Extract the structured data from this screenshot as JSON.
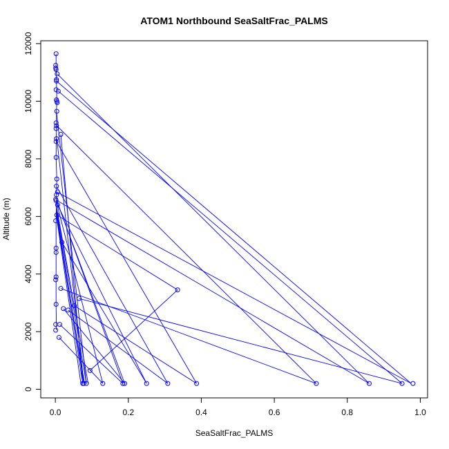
{
  "chart_data": {
    "type": "scatter",
    "title": "ATOM1 Northbound SeaSaltFrac_PALMS",
    "xlabel": "SeaSaltFrac_PALMS",
    "ylabel": "Altitude (m)",
    "xlim": [
      -0.04,
      1.02
    ],
    "ylim": [
      -300,
      12100
    ],
    "xticks": [
      0.0,
      0.2,
      0.4,
      0.6,
      0.8,
      1.0
    ],
    "xtick_labels": [
      "0.0",
      "0.2",
      "0.4",
      "0.6",
      "0.8",
      "1.0"
    ],
    "yticks": [
      0,
      2000,
      4000,
      6000,
      8000,
      10000,
      12000
    ],
    "ytick_labels": [
      "0",
      "2000",
      "4000",
      "6000",
      "8000",
      "10000",
      "12000"
    ],
    "grid": false,
    "series_color": "#0000ff",
    "series": [
      {
        "style": "points-and-lines",
        "points": [
          [
            0.002,
            11650
          ],
          [
            0.001,
            11250
          ],
          [
            0.001,
            11150
          ],
          [
            0.002,
            11100
          ],
          [
            0.003,
            10750
          ],
          [
            0.003,
            10700
          ],
          [
            0.005,
            10950
          ],
          [
            0.002,
            10400
          ],
          [
            0.008,
            10350
          ],
          [
            0.003,
            10050
          ],
          [
            0.004,
            10000
          ],
          [
            0.005,
            9950
          ],
          [
            0.004,
            9650
          ],
          [
            0.002,
            9250
          ],
          [
            0.003,
            9150
          ],
          [
            0.002,
            9050
          ],
          [
            0.015,
            8850
          ],
          [
            0.003,
            8700
          ],
          [
            0.002,
            8600
          ],
          [
            0.002,
            8050
          ],
          [
            0.004,
            7300
          ],
          [
            0.003,
            7050
          ],
          [
            0.006,
            6850
          ],
          [
            0.003,
            6750
          ],
          [
            0.001,
            6600
          ],
          [
            0.002,
            6550
          ],
          [
            0.006,
            6400
          ],
          [
            0.004,
            6050
          ],
          [
            0.001,
            5850
          ],
          [
            0.018,
            5100
          ],
          [
            0.002,
            4900
          ],
          [
            0.002,
            4750
          ],
          [
            0.002,
            3900
          ],
          [
            0.001,
            3800
          ],
          [
            0.335,
            3450
          ],
          [
            0.015,
            3500
          ],
          [
            0.065,
            3150
          ],
          [
            0.052,
            2900
          ],
          [
            0.002,
            2950
          ],
          [
            0.022,
            2800
          ],
          [
            0.035,
            2750
          ],
          [
            0.001,
            2250
          ],
          [
            0.012,
            2250
          ],
          [
            0.001,
            2050
          ],
          [
            0.01,
            1800
          ],
          [
            0.095,
            650
          ],
          [
            0.075,
            200
          ],
          [
            0.078,
            200
          ],
          [
            0.085,
            200
          ],
          [
            0.13,
            200
          ],
          [
            0.185,
            200
          ],
          [
            0.19,
            200
          ],
          [
            0.25,
            200
          ],
          [
            0.308,
            200
          ],
          [
            0.387,
            200
          ],
          [
            0.715,
            200
          ],
          [
            0.86,
            200
          ],
          [
            0.95,
            200
          ],
          [
            0.98,
            200
          ]
        ],
        "connections": [
          [
            0.002,
            11650,
            0.002,
            11250
          ],
          [
            0.002,
            11250,
            0.003,
            10750
          ],
          [
            0.003,
            10750,
            0.004,
            10000
          ],
          [
            0.004,
            10000,
            0.003,
            9650
          ],
          [
            0.003,
            9650,
            0.003,
            9050
          ],
          [
            0.003,
            9050,
            0.002,
            8050
          ],
          [
            0.002,
            8050,
            0.004,
            7300
          ],
          [
            0.004,
            7300,
            0.003,
            6850
          ],
          [
            0.003,
            6850,
            0.003,
            6400
          ],
          [
            0.003,
            6400,
            0.002,
            5850
          ],
          [
            0.002,
            5850,
            0.002,
            4750
          ],
          [
            0.002,
            4750,
            0.002,
            3800
          ],
          [
            0.002,
            3800,
            0.002,
            2950
          ],
          [
            0.002,
            2950,
            0.003,
            2050
          ],
          [
            0.005,
            10950,
            0.86,
            200
          ],
          [
            0.008,
            10350,
            0.95,
            200
          ],
          [
            0.003,
            10700,
            0.975,
            200
          ],
          [
            0.004,
            9150,
            0.715,
            200
          ],
          [
            0.003,
            8600,
            0.387,
            200
          ],
          [
            0.003,
            7050,
            0.308,
            200
          ],
          [
            0.004,
            6850,
            0.975,
            200
          ],
          [
            0.005,
            6550,
            0.86,
            200
          ],
          [
            0.006,
            6400,
            0.25,
            200
          ],
          [
            0.002,
            6600,
            0.19,
            200
          ],
          [
            0.004,
            6050,
            0.335,
            3450
          ],
          [
            0.335,
            3450,
            0.095,
            650
          ],
          [
            0.004,
            6550,
            0.185,
            200
          ],
          [
            0.003,
            6500,
            0.13,
            200
          ],
          [
            0.003,
            6350,
            0.09,
            200
          ],
          [
            0.003,
            6300,
            0.085,
            200
          ],
          [
            0.003,
            6200,
            0.078,
            200
          ],
          [
            0.003,
            6100,
            0.075,
            200
          ],
          [
            0.003,
            6000,
            0.07,
            200
          ],
          [
            0.005,
            5900,
            0.08,
            200
          ],
          [
            0.065,
            3150,
            0.95,
            200
          ],
          [
            0.015,
            3500,
            0.715,
            200
          ],
          [
            0.052,
            2900,
            0.387,
            200
          ],
          [
            0.022,
            2800,
            0.19,
            200
          ],
          [
            0.035,
            2750,
            0.308,
            200
          ],
          [
            0.012,
            2250,
            0.185,
            200
          ],
          [
            0.01,
            1800,
            0.13,
            200
          ],
          [
            0.018,
            5100,
            0.25,
            200
          ],
          [
            0.003,
            9650,
            0.085,
            200
          ],
          [
            0.004,
            8700,
            0.078,
            200
          ],
          [
            0.015,
            8850,
            0.075,
            200
          ]
        ]
      }
    ]
  }
}
